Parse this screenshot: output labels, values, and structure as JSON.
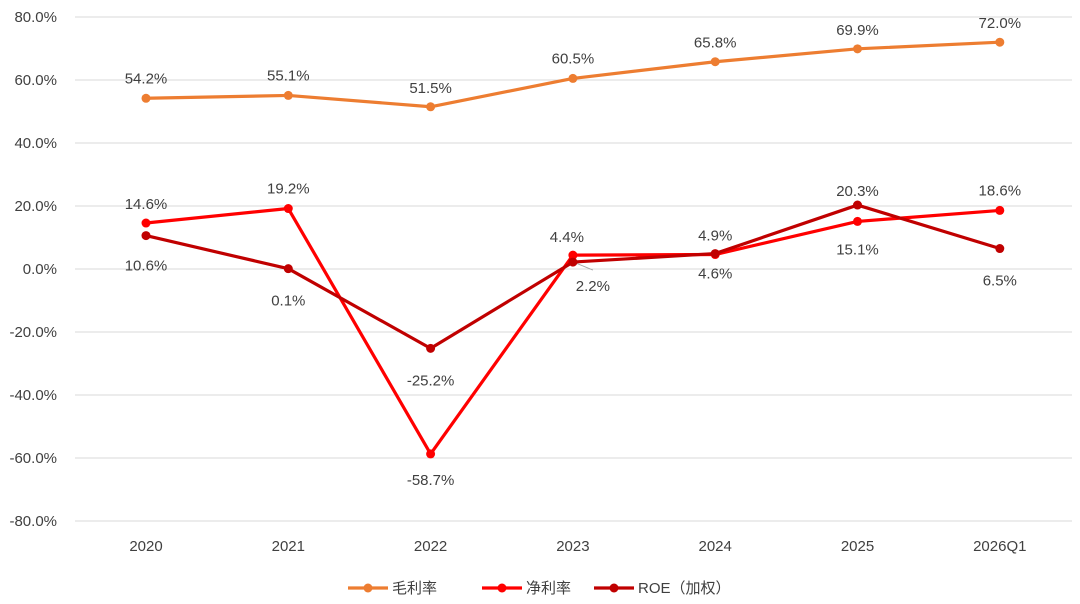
{
  "chart_data": {
    "type": "line",
    "categories": [
      "2020",
      "2021",
      "2022",
      "2023",
      "2024",
      "2025",
      "2026Q1"
    ],
    "y_ticks": [
      "80.0%",
      "60.0%",
      "40.0%",
      "20.0%",
      "0.0%",
      "-20.0%",
      "-40.0%",
      "-60.0%",
      "-80.0%"
    ],
    "ylim": [
      -80,
      80
    ],
    "grid": true,
    "legend_position": "bottom",
    "series": [
      {
        "name": "毛利率",
        "color": "#ED7D31",
        "values": [
          54.2,
          55.1,
          51.5,
          60.5,
          65.8,
          69.9,
          72.0
        ],
        "labels": [
          "54.2%",
          "55.1%",
          "51.5%",
          "60.5%",
          "65.8%",
          "69.9%",
          "72.0%"
        ]
      },
      {
        "name": "净利率",
        "color": "#FF0000",
        "values": [
          14.6,
          19.2,
          -58.7,
          4.4,
          4.6,
          15.1,
          18.6
        ],
        "labels": [
          "14.6%",
          "19.2%",
          "-58.7%",
          "4.4%",
          "4.6%",
          "15.1%",
          "18.6%"
        ]
      },
      {
        "name": "ROE（加权）",
        "color": "#C00000",
        "values": [
          10.6,
          0.1,
          -25.2,
          2.2,
          4.9,
          20.3,
          6.5
        ],
        "labels": [
          "10.6%",
          "0.1%",
          "-25.2%",
          "2.2%",
          "4.9%",
          "20.3%",
          "6.5%"
        ]
      }
    ]
  }
}
